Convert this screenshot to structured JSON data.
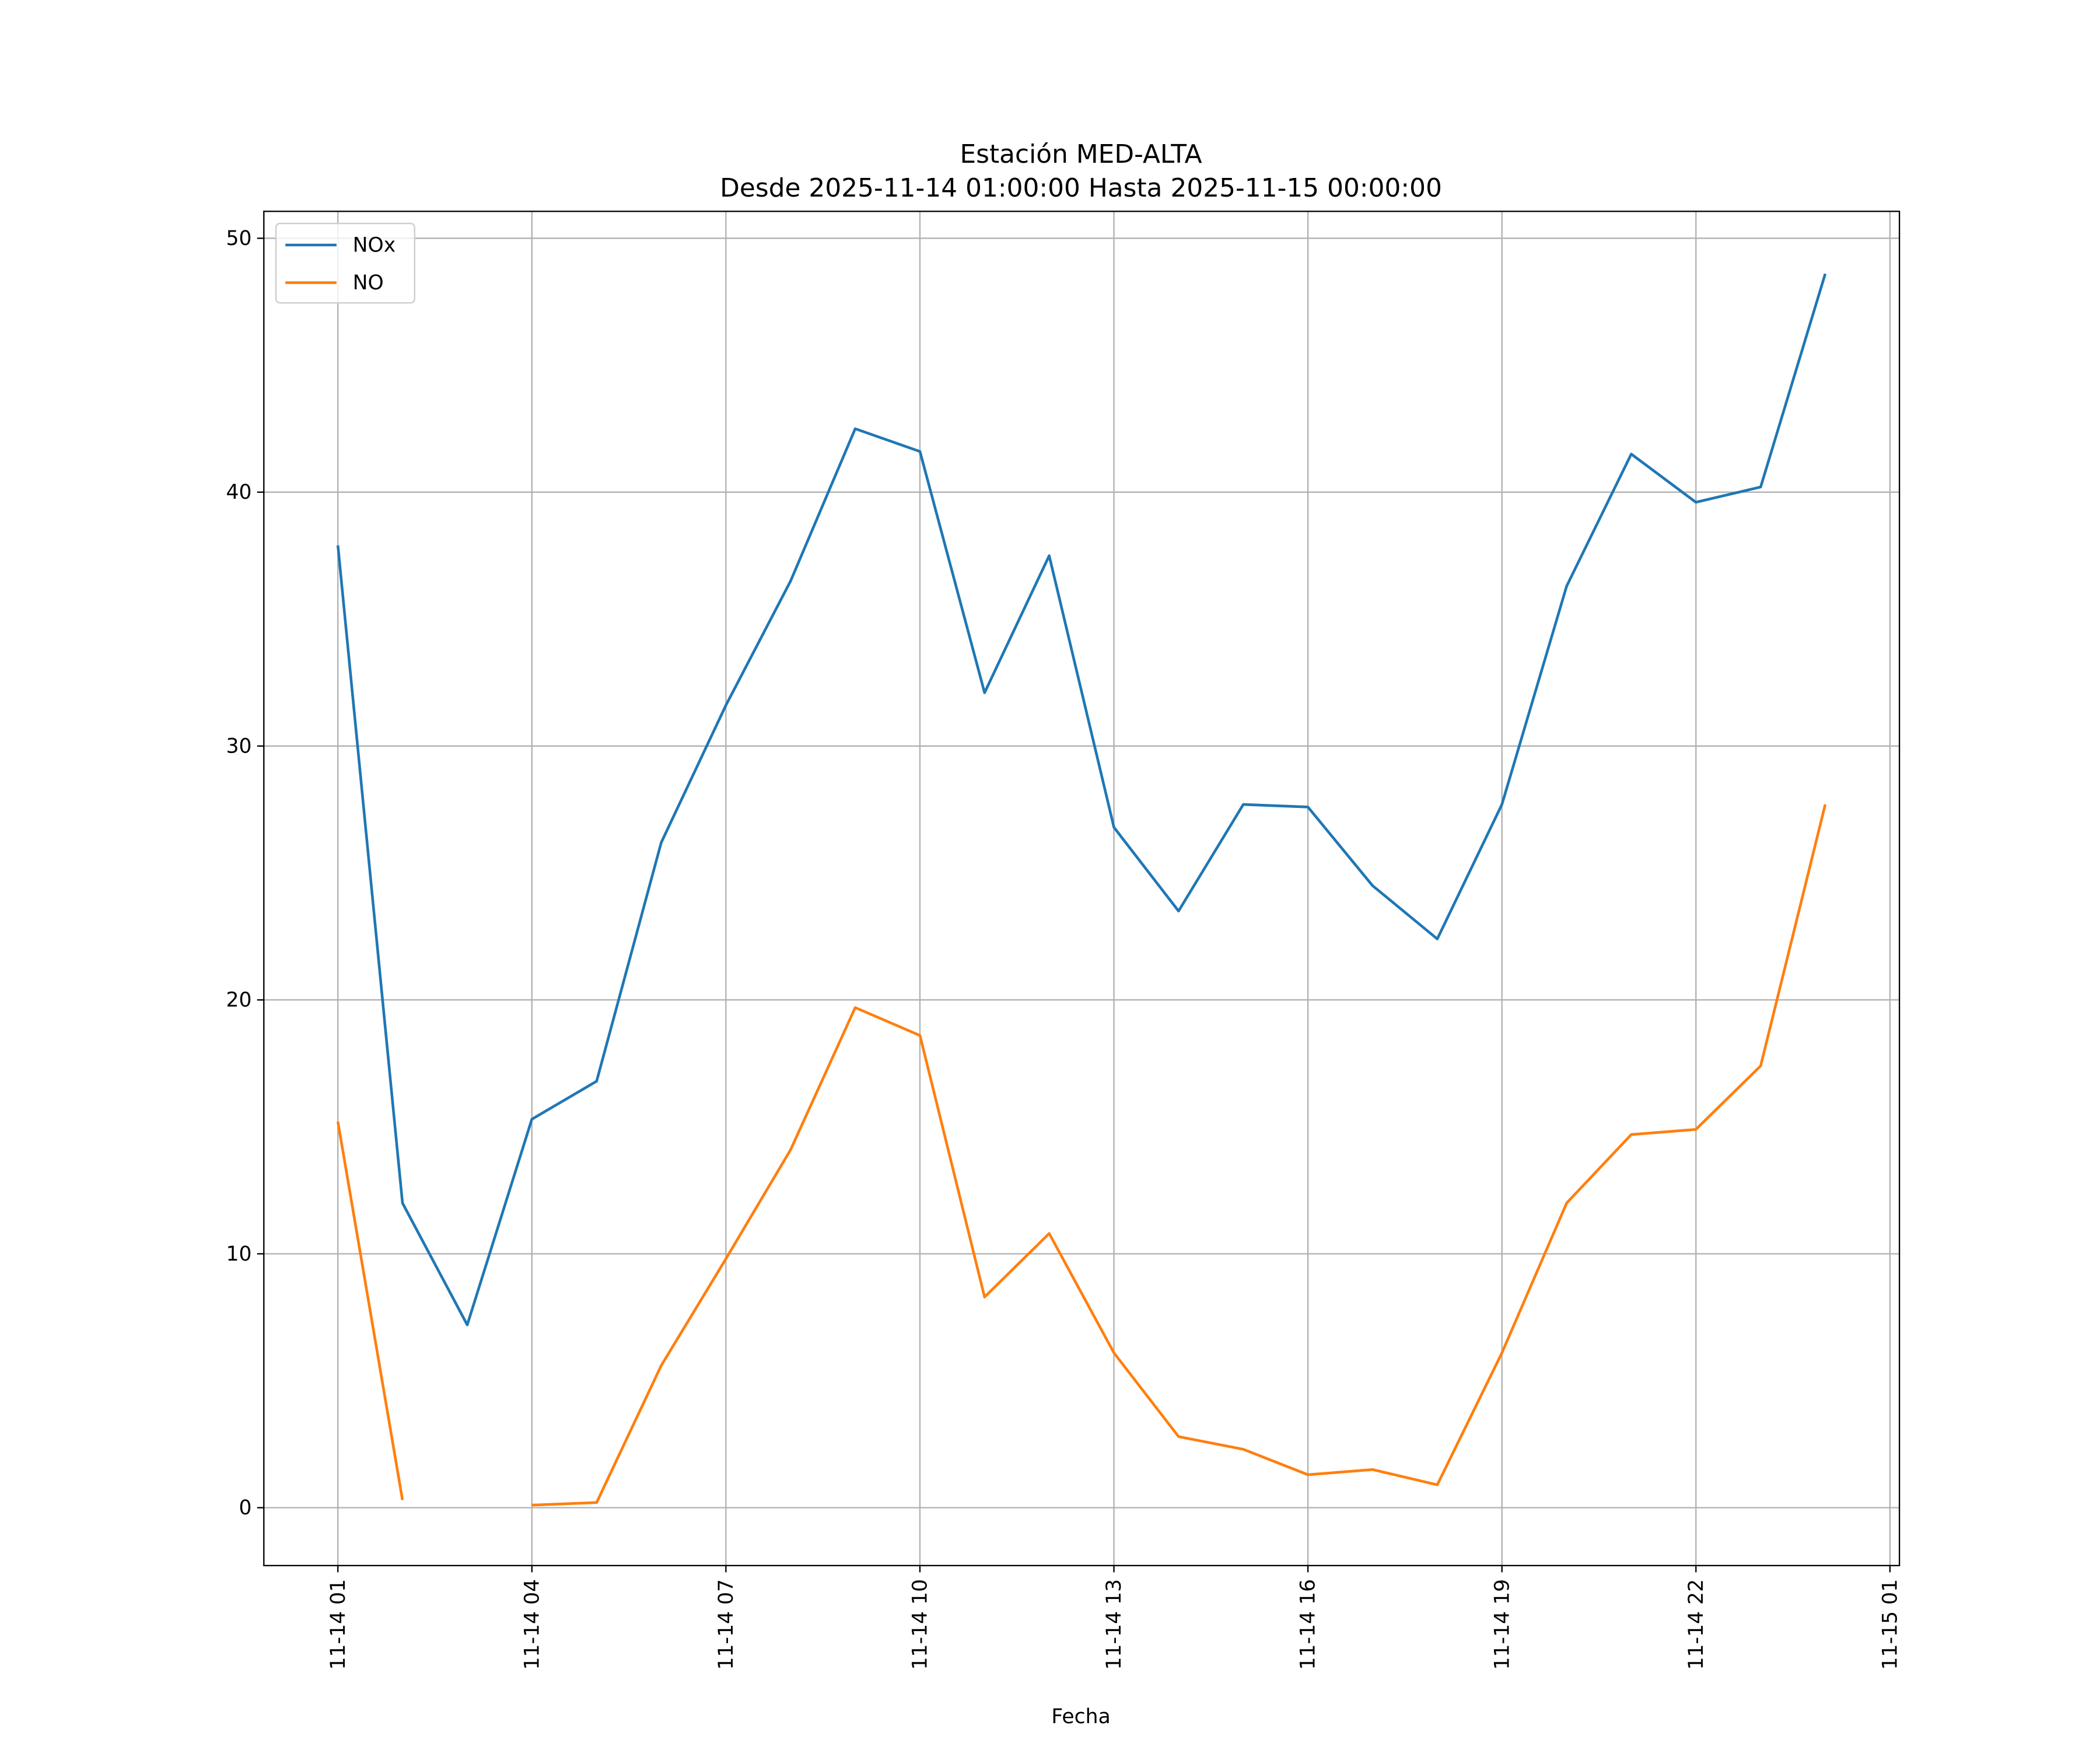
{
  "chart_data": {
    "type": "line",
    "title": "Estación MED-ALTA",
    "subtitle": "Desde 2025-11-14 01:00:00 Hasta 2025-11-15 00:00:00",
    "xlabel": "Fecha",
    "ylabel": "",
    "x": [
      "2025-11-14 01:00",
      "2025-11-14 02:00",
      "2025-11-14 03:00",
      "2025-11-14 04:00",
      "2025-11-14 05:00",
      "2025-11-14 06:00",
      "2025-11-14 07:00",
      "2025-11-14 08:00",
      "2025-11-14 09:00",
      "2025-11-14 10:00",
      "2025-11-14 11:00",
      "2025-11-14 12:00",
      "2025-11-14 13:00",
      "2025-11-14 14:00",
      "2025-11-14 15:00",
      "2025-11-14 16:00",
      "2025-11-14 17:00",
      "2025-11-14 18:00",
      "2025-11-14 19:00",
      "2025-11-14 20:00",
      "2025-11-14 21:00",
      "2025-11-14 22:00",
      "2025-11-14 23:00",
      "2025-11-15 00:00"
    ],
    "series": [
      {
        "name": "NOx",
        "color": "#1f77b4",
        "values": [
          37.9,
          12.0,
          7.2,
          15.3,
          16.8,
          26.2,
          31.6,
          36.5,
          42.5,
          41.6,
          32.1,
          37.5,
          26.8,
          23.5,
          27.7,
          27.6,
          24.5,
          22.4,
          27.7,
          36.3,
          41.5,
          39.6,
          40.2,
          48.6
        ]
      },
      {
        "name": "NO",
        "color": "#ff7f0e",
        "values": [
          15.2,
          0.3,
          null,
          0.1,
          0.2,
          5.6,
          9.8,
          14.1,
          19.7,
          18.6,
          8.3,
          10.8,
          6.1,
          2.8,
          2.3,
          1.3,
          1.5,
          0.9,
          6.1,
          12.0,
          14.7,
          14.9,
          17.4,
          27.7
        ]
      }
    ],
    "xticks": [
      "11-14 01",
      "11-14 04",
      "11-14 07",
      "11-14 10",
      "11-14 13",
      "11-14 16",
      "11-14 19",
      "11-14 22",
      "11-15 01"
    ],
    "yticks": [
      0,
      10,
      20,
      30,
      40,
      50
    ],
    "xlim": [
      "2025-11-13 22:45",
      "2025-11-15 01:10"
    ],
    "ylim": [
      -2.3,
      51.1
    ],
    "grid": true,
    "legend": "upper-left"
  }
}
